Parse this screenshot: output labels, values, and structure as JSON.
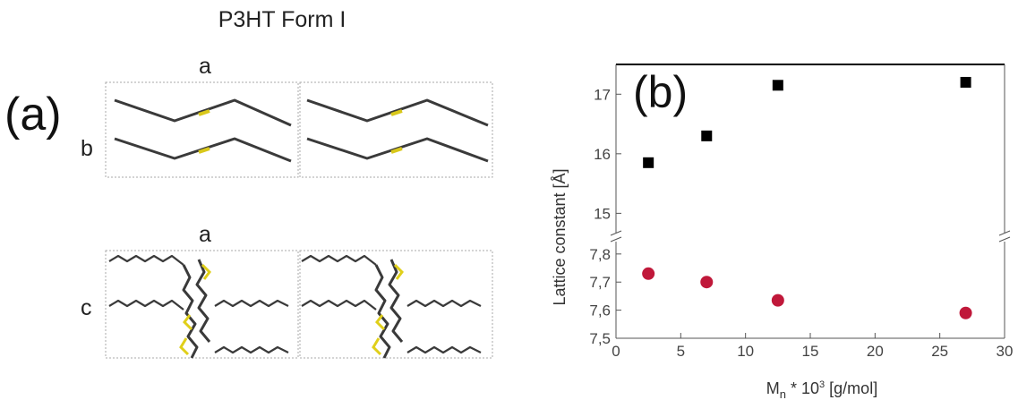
{
  "title": "P3HT Form I",
  "panel_a": {
    "label": "(a)",
    "top_view": {
      "axis_top": "a",
      "axis_side": "b"
    },
    "bottom_view": {
      "axis_top": "a",
      "axis_side": "c"
    }
  },
  "panel_b": {
    "label": "(b)"
  },
  "colors": {
    "series_1": "#000000",
    "series_2": "#c0183a",
    "sulfur": "#e0cf1a",
    "backbone": "#3a3a3a"
  },
  "chart_data": {
    "type": "scatter",
    "xlabel": "M_n * 10^3 [g/mol]",
    "xlabel_main": "M",
    "xlabel_sub": "n",
    "xlabel_rest": " * 10",
    "xlabel_sup": "3",
    "xlabel_units": " [g/mol]",
    "ylabel": "Lattice constant [Å]",
    "xlim": [
      0,
      30
    ],
    "x_ticks": [
      "0",
      "5",
      "10",
      "15",
      "20",
      "25",
      "30"
    ],
    "y_ticks_upper": [
      "15",
      "16",
      "17"
    ],
    "y_ticks_lower": [
      "7,5",
      "7,6",
      "7,7",
      "7,8"
    ],
    "broken_y_axis": true,
    "series": [
      {
        "marker": "square",
        "color": "#000000",
        "x": [
          2.5,
          7,
          12.5,
          27
        ],
        "y": [
          15.85,
          16.3,
          17.15,
          17.2
        ]
      },
      {
        "marker": "circle",
        "color": "#c0183a",
        "x": [
          2.5,
          7,
          12.5,
          27
        ],
        "y": [
          7.73,
          7.7,
          7.635,
          7.59
        ]
      }
    ]
  }
}
